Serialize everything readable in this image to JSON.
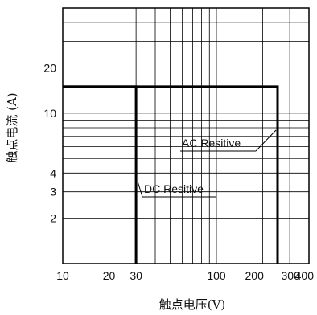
{
  "chart_data": {
    "type": "line",
    "title": "",
    "xlabel": "触点电压(V)",
    "ylabel": "触点电流 (A)",
    "x_scale": "log",
    "y_scale": "log",
    "xlim": [
      10,
      400
    ],
    "ylim": [
      1,
      50
    ],
    "grid": true,
    "x_ticks": [
      {
        "value": 10,
        "label": "10"
      },
      {
        "value": 20,
        "label": "20"
      },
      {
        "value": 30,
        "label": "30"
      },
      {
        "value": 100,
        "label": "100"
      },
      {
        "value": 200,
        "label": "200"
      },
      {
        "value": 300,
        "label": "300"
      },
      {
        "value": 400,
        "label": "400"
      }
    ],
    "y_ticks": [
      {
        "value": 2,
        "label": "2"
      },
      {
        "value": 3,
        "label": "3"
      },
      {
        "value": 4,
        "label": "4"
      },
      {
        "value": 10,
        "label": "10"
      },
      {
        "value": 20,
        "label": "20"
      }
    ],
    "series": [
      {
        "name": "DC Resitive",
        "points": [
          [
            10,
            15
          ],
          [
            30,
            15
          ],
          [
            30,
            1
          ]
        ]
      },
      {
        "name": "AC Resitive",
        "points": [
          [
            10,
            15
          ],
          [
            250,
            15
          ],
          [
            250,
            1
          ]
        ]
      }
    ],
    "annotations": [
      {
        "text": "AC Resitive",
        "target": "AC Resitive"
      },
      {
        "text": "DC Resitive",
        "target": "DC Resitive"
      }
    ]
  }
}
